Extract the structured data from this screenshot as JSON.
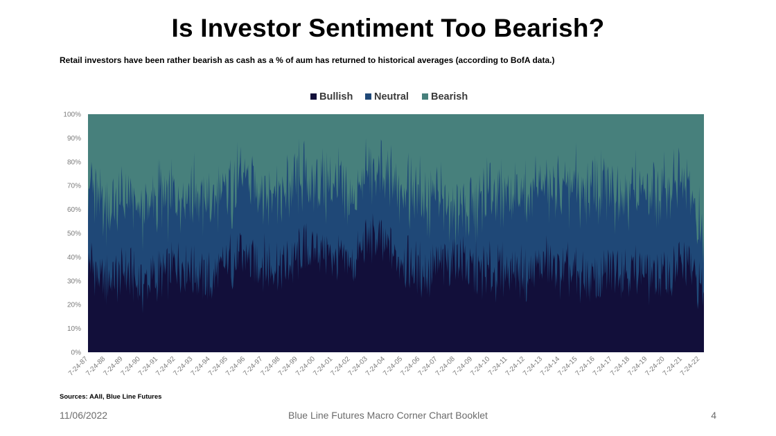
{
  "title": "Is Investor Sentiment Too Bearish?",
  "subtitle": "Retail investors have been rather bearish as cash as a % of aum has returned to historical averages (according to BofA data.)",
  "footer": {
    "sources": "Sources: AAII, Blue Line Futures",
    "date": "11/06/2022",
    "booklet": "Blue Line Futures Macro Corner Chart Booklet",
    "page": "4"
  },
  "chart_data": {
    "type": "area",
    "stacked": true,
    "percent_stacked": true,
    "legend_position": "top-center",
    "grid": false,
    "ylim": [
      0,
      100
    ],
    "y_ticks": [
      "0%",
      "10%",
      "20%",
      "30%",
      "40%",
      "50%",
      "60%",
      "70%",
      "80%",
      "90%",
      "100%"
    ],
    "x_ticks": [
      "7-24-87",
      "7-24-88",
      "7-24-89",
      "7-24-90",
      "7-24-91",
      "7-24-92",
      "7-24-93",
      "7-24-94",
      "7-24-95",
      "7-24-96",
      "7-24-97",
      "7-24-98",
      "7-24-99",
      "7-24-00",
      "7-24-01",
      "7-24-02",
      "7-24-03",
      "7-24-04",
      "7-24-05",
      "7-24-06",
      "7-24-07",
      "7-24-08",
      "7-24-09",
      "7-24-10",
      "7-24-11",
      "7-24-12",
      "7-24-13",
      "7-24-14",
      "7-24-15",
      "7-24-16",
      "7-24-17",
      "7-24-18",
      "7-24-19",
      "7-24-20",
      "7-24-21",
      "7-24-22"
    ],
    "x": [
      "1987",
      "1988",
      "1989",
      "1990",
      "1991",
      "1992",
      "1993",
      "1994",
      "1995",
      "1996",
      "1997",
      "1998",
      "1999",
      "2000",
      "2001",
      "2002",
      "2003",
      "2004",
      "2005",
      "2006",
      "2007",
      "2008",
      "2009",
      "2010",
      "2011",
      "2012",
      "2013",
      "2014",
      "2015",
      "2016",
      "2017",
      "2018",
      "2019",
      "2020",
      "2021",
      "2022"
    ],
    "series": [
      {
        "name": "Bullish",
        "color": "#120f3a",
        "values": [
          38,
          30,
          34,
          28,
          32,
          36,
          34,
          30,
          38,
          40,
          38,
          36,
          40,
          44,
          40,
          36,
          48,
          44,
          38,
          34,
          36,
          40,
          34,
          33,
          36,
          32,
          38,
          34,
          32,
          30,
          36,
          34,
          32,
          32,
          40,
          24
        ]
      },
      {
        "name": "Neutral",
        "color": "#1f4877",
        "values": [
          34,
          30,
          30,
          30,
          32,
          30,
          32,
          32,
          30,
          32,
          32,
          30,
          30,
          28,
          30,
          28,
          28,
          28,
          32,
          32,
          28,
          20,
          28,
          34,
          30,
          34,
          32,
          36,
          36,
          38,
          32,
          34,
          34,
          36,
          34,
          20
        ]
      },
      {
        "name": "Bearish",
        "color": "#47807c",
        "values": [
          28,
          40,
          36,
          42,
          36,
          34,
          34,
          38,
          32,
          28,
          30,
          34,
          30,
          28,
          30,
          36,
          24,
          28,
          30,
          34,
          36,
          40,
          38,
          33,
          34,
          34,
          30,
          30,
          32,
          32,
          32,
          32,
          34,
          32,
          26,
          56
        ]
      }
    ]
  }
}
